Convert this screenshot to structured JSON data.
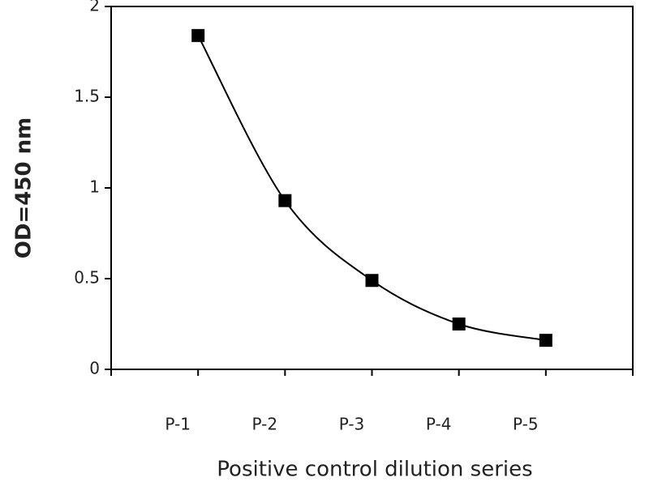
{
  "chart_data": {
    "type": "line",
    "title": null,
    "x_label": "Positive control dilution series",
    "y_label": "OD=450 nm",
    "categories": [
      "P-1",
      "P-2",
      "P-3",
      "P-4",
      "P-5"
    ],
    "series": [
      {
        "name": "OD",
        "color": "#000000",
        "values": [
          1.84,
          0.93,
          0.49,
          0.25,
          0.16
        ]
      }
    ],
    "ylim": [
      0,
      2
    ],
    "yticks": [
      0,
      0.5,
      1,
      1.5,
      2
    ],
    "smooth": true,
    "marker": "square"
  }
}
